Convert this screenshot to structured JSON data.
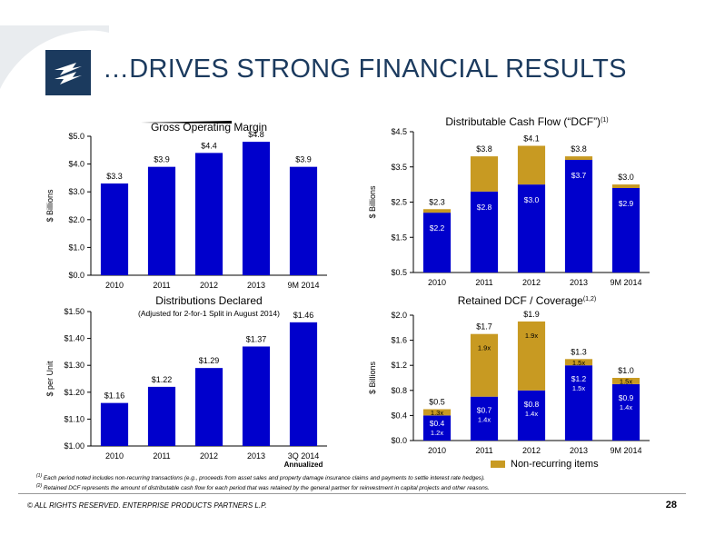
{
  "header": {
    "title": "…DRIVES STRONG FINANCIAL RESULTS",
    "logo_icon": "enterprise-logo-icon"
  },
  "colors": {
    "blue": "#0000cc",
    "gold": "#c89a22",
    "title": "#1b3a5e"
  },
  "chart_data": [
    {
      "id": "gross-operating-margin",
      "type": "bar",
      "title": "Gross Operating Margin",
      "ylabel": "$ Billions",
      "categories": [
        "2010",
        "2011",
        "2012",
        "2013",
        "9M 2014"
      ],
      "values": [
        3.3,
        3.9,
        4.4,
        4.8,
        3.9
      ],
      "value_labels": [
        "$3.3",
        "$3.9",
        "$4.4",
        "$4.8",
        "$3.9"
      ],
      "ylim": [
        0,
        5
      ],
      "yticks": [
        0,
        1,
        2,
        3,
        4,
        5
      ],
      "ytick_labels": [
        "$0.0",
        "$1.0",
        "$2.0",
        "$3.0",
        "$4.0",
        "$5.0"
      ]
    },
    {
      "id": "distributable-cash-flow",
      "type": "bar",
      "title": "Distributable Cash Flow (“DCF”)",
      "title_sup": "(1)",
      "ylabel": "$ Billions",
      "categories": [
        "2010",
        "2011",
        "2012",
        "2013",
        "9M 2014"
      ],
      "stacked": true,
      "series": [
        {
          "values": [
            2.2,
            2.8,
            3.0,
            3.7,
            2.9
          ],
          "labels": [
            "$2.2",
            "$2.8",
            "$3.0",
            "$3.7",
            "$2.9"
          ]
        },
        {
          "values": [
            0.1,
            1.0,
            1.1,
            0.1,
            0.1
          ]
        }
      ],
      "total_labels": [
        "$2.3",
        "$3.8",
        "$4.1",
        "$3.8",
        "$3.0"
      ],
      "ylim": [
        0.5,
        4.5
      ],
      "yticks": [
        0.5,
        1.5,
        2.5,
        3.5,
        4.5
      ],
      "ytick_labels": [
        "$0.5",
        "$1.5",
        "$2.5",
        "$3.5",
        "$4.5"
      ]
    },
    {
      "id": "distributions-declared",
      "type": "bar",
      "title": "Distributions Declared",
      "subtitle": "(Adjusted for 2-for-1 Split in August 2014)",
      "ylabel": "$ per Unit",
      "categories": [
        "2010",
        "2011",
        "2012",
        "2013",
        "3Q 2014"
      ],
      "category_sub": [
        "",
        "",
        "",
        "",
        "Annualized"
      ],
      "values": [
        1.16,
        1.22,
        1.29,
        1.37,
        1.46
      ],
      "value_labels": [
        "$1.16",
        "$1.22",
        "$1.29",
        "$1.37",
        "$1.46"
      ],
      "ylim": [
        1.0,
        1.5
      ],
      "yticks": [
        1.0,
        1.1,
        1.2,
        1.3,
        1.4,
        1.5
      ],
      "ytick_labels": [
        "$1.00",
        "$1.10",
        "$1.20",
        "$1.30",
        "$1.40",
        "$1.50"
      ]
    },
    {
      "id": "retained-dcf-coverage",
      "type": "bar",
      "title": "Retained DCF / Coverage",
      "title_sup": "(1,2)",
      "ylabel": "$ Billions",
      "categories": [
        "2010",
        "2011",
        "2012",
        "2013",
        "9M 2014"
      ],
      "stacked": true,
      "series": [
        {
          "values": [
            0.4,
            0.7,
            0.8,
            1.2,
            0.9
          ],
          "labels": [
            "$0.4",
            "$0.7",
            "$0.8",
            "$1.2",
            "$0.9"
          ],
          "coverage": [
            "1.2x",
            "1.4x",
            "1.4x",
            "1.5x",
            "1.4x"
          ]
        },
        {
          "name": "Non-recurring items",
          "values": [
            0.1,
            1.0,
            1.1,
            0.1,
            0.1
          ],
          "coverage": [
            "1.3x",
            "1.9x",
            "1.9x",
            "1.5x",
            "1.5x"
          ]
        }
      ],
      "total_labels": [
        "$0.5",
        "$1.7",
        "$1.9",
        "$1.3",
        "$1.0"
      ],
      "ylim": [
        0,
        2.0
      ],
      "yticks": [
        0,
        0.4,
        0.8,
        1.2,
        1.6,
        2.0
      ],
      "ytick_labels": [
        "$0.0",
        "$0.4",
        "$0.8",
        "$1.2",
        "$1.6",
        "$2.0"
      ]
    }
  ],
  "footnotes": [
    {
      "marker": "(1)",
      "text": "Each period noted includes non-recurring transactions (e.g., proceeds from asset sales and property damage insurance claims and payments to settle interest rate hedges)."
    },
    {
      "marker": "(2)",
      "text": "Retained DCF represents the amount of distributable cash flow for each period that was retained by the general partner for reinvestment in capital projects and other reasons."
    }
  ],
  "footer": {
    "copyright": "© ALL RIGHTS RESERVED. ENTERPRISE PRODUCTS PARTNERS L.P.",
    "page": "28"
  }
}
